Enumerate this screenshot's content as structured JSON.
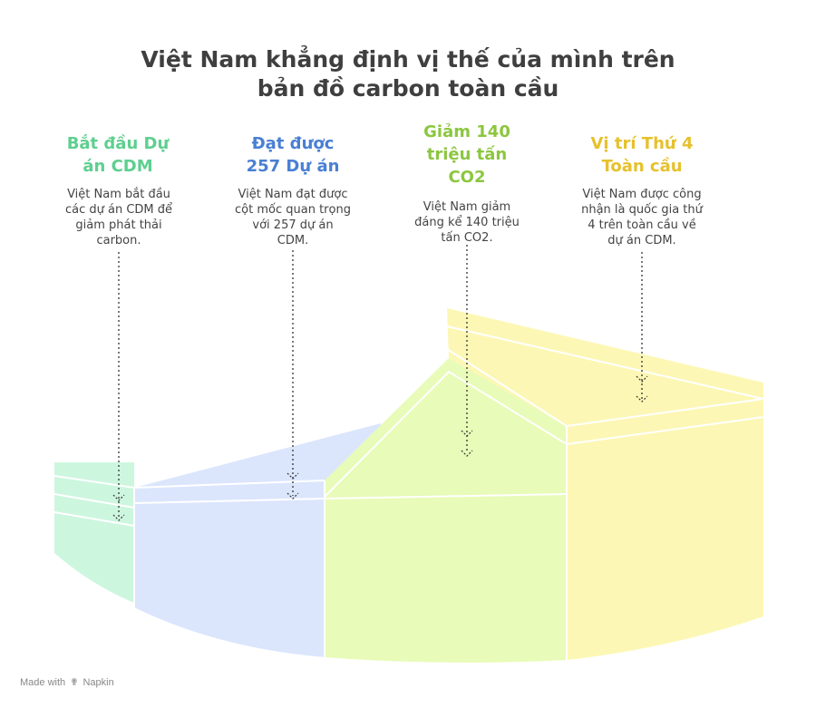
{
  "title_line1": "Việt Nam khẳng định vị thế của mình trên",
  "title_line2": "bản đồ carbon toàn cầu",
  "steps": [
    {
      "heading_line1": "Bắt đầu Dự",
      "heading_line2": "án CDM",
      "heading_line3": "",
      "desc_line1": "Việt Nam bắt đầu",
      "desc_line2": "các dự án CDM để",
      "desc_line3": "giảm phát thải",
      "desc_line4": "carbon.",
      "color": "#5ecf8f",
      "fill": "#cdf6df"
    },
    {
      "heading_line1": "Đạt được",
      "heading_line2": "257 Dự án",
      "heading_line3": "",
      "desc_line1": "Việt Nam đạt được",
      "desc_line2": "cột mốc quan trọng",
      "desc_line3": "với 257 dự án",
      "desc_line4": "CDM.",
      "color": "#4a7fd3",
      "fill": "#dbe6fd"
    },
    {
      "heading_line1": "Giảm 140",
      "heading_line2": "triệu tấn",
      "heading_line3": "CO2",
      "desc_line1": "Việt Nam giảm",
      "desc_line2": "đáng kể 140 triệu",
      "desc_line3": "tấn CO2.",
      "desc_line4": "",
      "color": "#8cc63f",
      "fill": "#e8fbb8"
    },
    {
      "heading_line1": "Vị trí Thứ 4",
      "heading_line2": "Toàn cầu",
      "heading_line3": "",
      "desc_line1": "Việt Nam được công",
      "desc_line2": "nhận là quốc gia thứ",
      "desc_line3": "4 trên toàn cầu về",
      "desc_line4": "dự án CDM.",
      "color": "#e6c12c",
      "fill": "#fdf7b5"
    }
  ],
  "footer": {
    "made_with": "Made with",
    "brand": "Napkin"
  }
}
